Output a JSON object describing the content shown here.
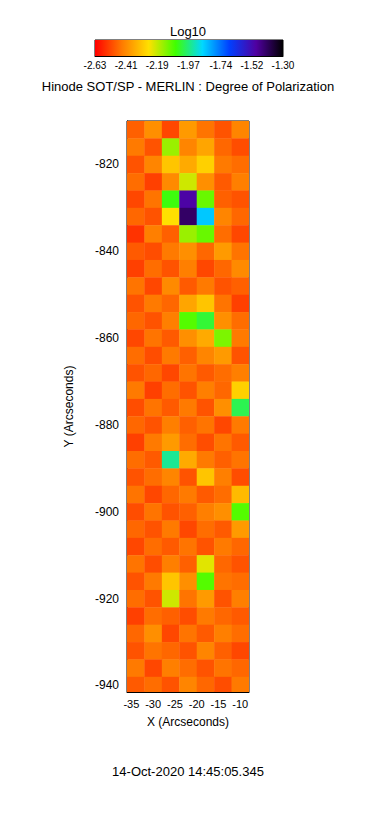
{
  "chart_data": {
    "type": "heatmap",
    "title": "Hinode SOT/SP - MERLIN : Degree of Polarization",
    "annotation": "14-Oct-2020 14:45:05.345",
    "x_label": "X (Arcseconds)",
    "y_label": "Y (Arcseconds)",
    "xlim": [
      -36,
      -8
    ],
    "ylim": [
      -941.5,
      -810
    ],
    "xticks": [
      -35,
      -30,
      -25,
      -20,
      -15,
      -10
    ],
    "yticks": [
      -940,
      -920,
      -900,
      -880,
      -860,
      -840,
      -820
    ],
    "grid": false,
    "cells": {
      "x": [
        -34,
        -30,
        -26,
        -22,
        -18,
        -14,
        -10
      ],
      "y": [
        -812,
        -816,
        -820,
        -824,
        -828,
        -832,
        -836,
        -840,
        -844,
        -848,
        -852,
        -856,
        -860,
        -864,
        -868,
        -872,
        -876,
        -880,
        -884,
        -888,
        -892,
        -896,
        -900,
        -904,
        -908,
        -912,
        -916,
        -920,
        -924,
        -928,
        -932,
        -936,
        -940
      ],
      "values": [
        [
          -2.48,
          -2.4,
          -2.52,
          -2.38,
          -2.45,
          -2.5,
          -2.42
        ],
        [
          -2.44,
          -2.5,
          -2.15,
          -2.42,
          -2.36,
          -2.47,
          -2.51
        ],
        [
          -2.5,
          -2.42,
          -2.3,
          -2.35,
          -2.28,
          -2.44,
          -2.46
        ],
        [
          -2.46,
          -2.53,
          -2.41,
          -2.2,
          -2.4,
          -2.49,
          -2.43
        ],
        [
          -2.52,
          -2.45,
          -2.05,
          -1.5,
          -2.1,
          -2.48,
          -2.5
        ],
        [
          -2.47,
          -2.5,
          -2.25,
          -1.42,
          -1.85,
          -2.42,
          -2.47
        ],
        [
          -2.55,
          -2.43,
          -2.48,
          -2.15,
          -2.1,
          -2.46,
          -2.52
        ],
        [
          -2.49,
          -2.51,
          -2.44,
          -2.4,
          -2.47,
          -2.38,
          -2.45
        ],
        [
          -2.53,
          -2.46,
          -2.5,
          -2.43,
          -2.52,
          -2.47,
          -2.41
        ],
        [
          -2.45,
          -2.52,
          -2.41,
          -2.49,
          -2.44,
          -2.5,
          -2.48
        ],
        [
          -2.5,
          -2.44,
          -2.47,
          -2.36,
          -2.3,
          -2.45,
          -2.53
        ],
        [
          -2.47,
          -2.5,
          -2.43,
          -2.08,
          -2.02,
          -2.4,
          -2.46
        ],
        [
          -2.52,
          -2.45,
          -2.49,
          -2.4,
          -2.35,
          -2.12,
          -2.44
        ],
        [
          -2.46,
          -2.51,
          -2.44,
          -2.48,
          -2.42,
          -2.38,
          -2.5
        ],
        [
          -2.5,
          -2.47,
          -2.52,
          -2.45,
          -2.49,
          -2.46,
          -2.43
        ],
        [
          -2.44,
          -2.53,
          -2.46,
          -2.5,
          -2.43,
          -2.47,
          -2.28
        ],
        [
          -2.51,
          -2.45,
          -2.49,
          -2.44,
          -2.5,
          -2.4,
          -2.0
        ],
        [
          -2.47,
          -2.5,
          -2.43,
          -2.48,
          -2.45,
          -2.52,
          -2.44
        ],
        [
          -2.53,
          -2.44,
          -2.38,
          -2.46,
          -2.51,
          -2.45,
          -2.49
        ],
        [
          -2.46,
          -2.49,
          -1.95,
          -2.35,
          -2.44,
          -2.48,
          -2.45
        ],
        [
          -2.5,
          -2.46,
          -2.42,
          -2.5,
          -2.3,
          -2.43,
          -2.51
        ],
        [
          -2.45,
          -2.52,
          -2.47,
          -2.44,
          -2.49,
          -2.46,
          -2.32
        ],
        [
          -2.51,
          -2.45,
          -2.5,
          -2.48,
          -2.43,
          -2.4,
          -2.08
        ],
        [
          -2.47,
          -2.5,
          -2.44,
          -2.52,
          -2.46,
          -2.49,
          -2.38
        ],
        [
          -2.52,
          -2.46,
          -2.49,
          -2.45,
          -2.5,
          -2.44,
          -2.47
        ],
        [
          -2.45,
          -2.51,
          -2.43,
          -2.48,
          -2.22,
          -2.47,
          -2.5
        ],
        [
          -2.5,
          -2.44,
          -2.3,
          -2.4,
          -2.08,
          -2.45,
          -2.46
        ],
        [
          -2.46,
          -2.5,
          -2.2,
          -2.45,
          -2.38,
          -2.5,
          -2.43
        ],
        [
          -2.53,
          -2.46,
          -2.48,
          -2.51,
          -2.44,
          -2.47,
          -2.49
        ],
        [
          -2.47,
          -2.4,
          -2.52,
          -2.45,
          -2.49,
          -2.43,
          -2.46
        ],
        [
          -2.5,
          -2.45,
          -2.47,
          -2.5,
          -2.42,
          -2.48,
          -2.52
        ],
        [
          -2.44,
          -2.52,
          -2.43,
          -2.46,
          -2.5,
          -2.45,
          -2.47
        ],
        [
          -2.49,
          -2.46,
          -2.5,
          -2.42,
          -2.47,
          -2.51,
          -2.44
        ]
      ]
    },
    "colorbar": {
      "label": "Log10",
      "range": [
        -2.63,
        -1.3
      ],
      "ticks": [
        -2.63,
        -2.41,
        -2.19,
        -1.97,
        -1.74,
        -1.52,
        {
          "value": -1.3,
          "label": "-1.30"
        }
      ],
      "colors": [
        "#ff0000",
        "#ff7a00",
        "#ffe000",
        "#40ff00",
        "#00d8ff",
        "#0040ff",
        "#5000a0",
        "#000000"
      ]
    }
  }
}
